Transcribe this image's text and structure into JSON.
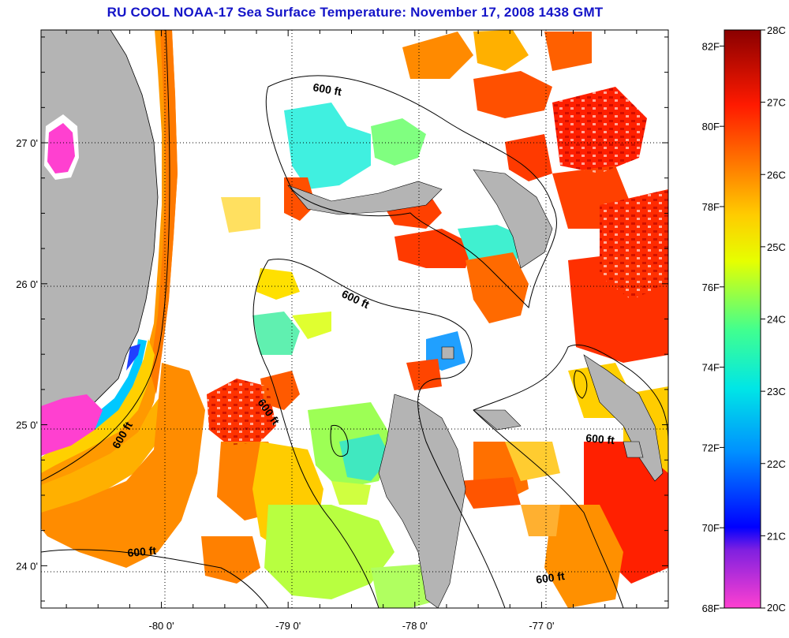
{
  "title": "RU COOL  NOAA-17  Sea Surface Temperature:  November 17, 2008 1438 GMT",
  "map": {
    "lon_ticks": [
      {
        "value": -80,
        "label": "-80 0'"
      },
      {
        "value": -79,
        "label": "-79 0'"
      },
      {
        "value": -78,
        "label": "-78 0'"
      },
      {
        "value": -77,
        "label": "-77 0'"
      }
    ],
    "lat_ticks": [
      {
        "value": 27,
        "label": "27 0'"
      },
      {
        "value": 26,
        "label": "26 0'"
      },
      {
        "value": 25,
        "label": "25 0'"
      },
      {
        "value": 24,
        "label": "24 0'"
      }
    ],
    "lon_range": [
      -80.95,
      -76.0
    ],
    "lat_range": [
      23.7,
      27.8
    ],
    "land_color": "#b4b4b4",
    "contour_labels": [
      "600 ft",
      "600 ft",
      "600 ft",
      "600 ft",
      "600 ft",
      "600 ft",
      "600 ft"
    ]
  },
  "colorbar": {
    "celsius_labels": [
      "28C",
      "27C",
      "26C",
      "25C",
      "24C",
      "23C",
      "22C",
      "21C",
      "20C"
    ],
    "fahrenheit_labels": [
      "82F",
      "80F",
      "78F",
      "76F",
      "74F",
      "72F",
      "70F",
      "68F"
    ],
    "celsius_range": [
      20,
      28
    ],
    "fahrenheit_range": [
      68,
      82.4
    ],
    "stops": [
      "#ff33cc",
      "#0000ff",
      "#00ccff",
      "#33ff99",
      "#ffff00",
      "#ff9900",
      "#ff0000",
      "#990000"
    ]
  }
}
